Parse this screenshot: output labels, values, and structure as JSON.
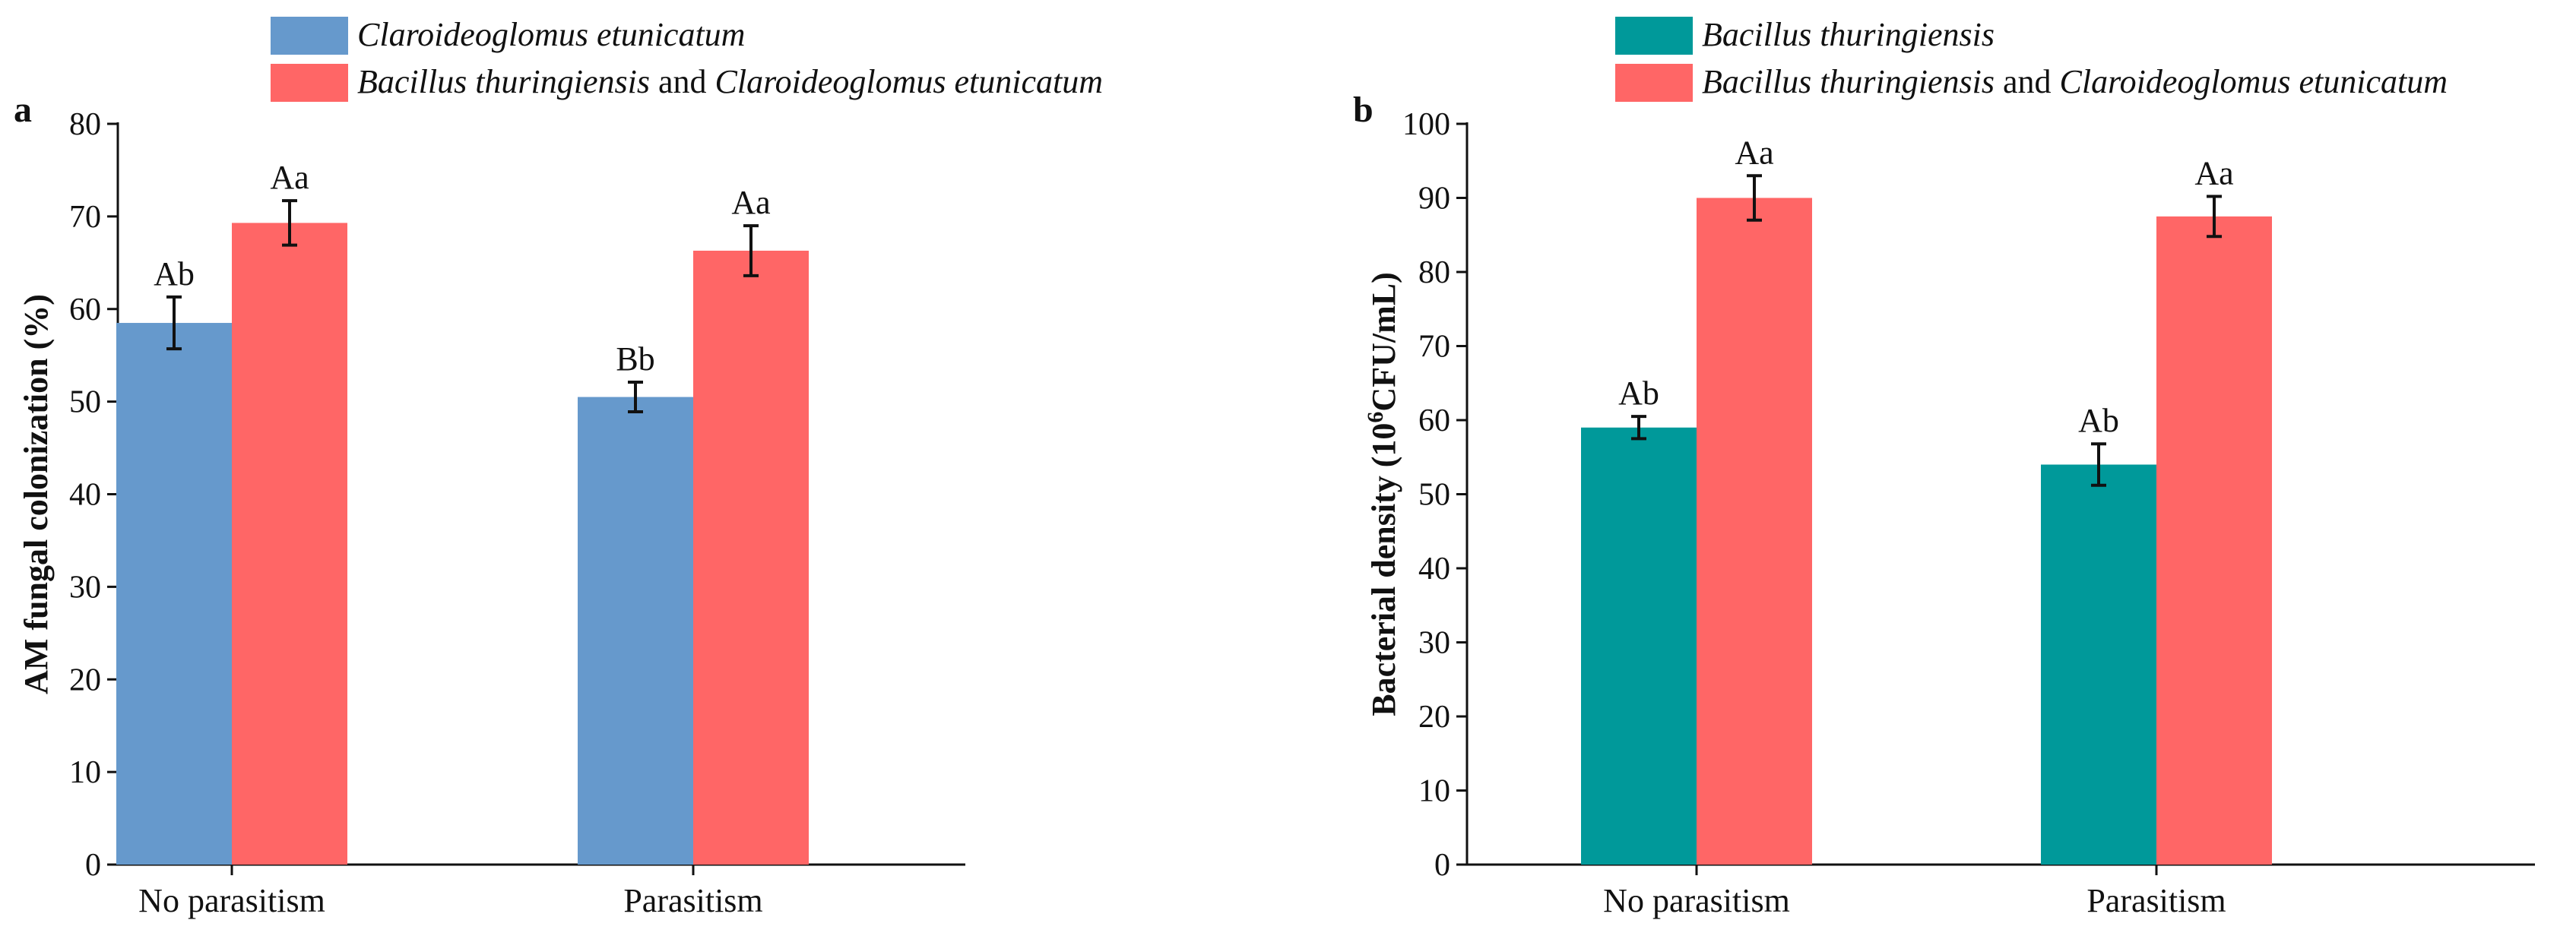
{
  "chart_data": [
    {
      "panel": "a",
      "type": "bar",
      "ylabel": "AM fungal colonization (%)",
      "ylim": [
        0,
        80
      ],
      "yticks": [
        0,
        10,
        20,
        30,
        40,
        50,
        60,
        70,
        80
      ],
      "categories": [
        "No parasitism",
        "Parasitism"
      ],
      "legend_position": "top",
      "series": [
        {
          "name_parts": [
            {
              "text": "Claroideoglomus etunicatum",
              "italic": true
            }
          ],
          "color": "#6699cc",
          "values": [
            58.5,
            50.5
          ],
          "errors": [
            2.8,
            1.6
          ],
          "labels": [
            "Ab",
            "Bb"
          ]
        },
        {
          "name_parts": [
            {
              "text": "Bacillus thuringiensis",
              "italic": true
            },
            {
              "text": " and ",
              "italic": false
            },
            {
              "text": "Claroideoglomus etunicatum",
              "italic": true
            }
          ],
          "color": "#ff6666",
          "values": [
            69.3,
            66.3
          ],
          "errors": [
            2.4,
            2.7
          ],
          "labels": [
            "Aa",
            "Aa"
          ]
        }
      ]
    },
    {
      "panel": "b",
      "type": "bar",
      "ylabel_parts": [
        {
          "text": "Bacterial density (10",
          "sup": false
        },
        {
          "text": "6",
          "sup": true
        },
        {
          "text": "CFU/mL)",
          "sup": false
        }
      ],
      "ylim": [
        0,
        100
      ],
      "yticks": [
        0,
        10,
        20,
        30,
        40,
        50,
        60,
        70,
        80,
        90,
        100
      ],
      "categories": [
        "No parasitism",
        "Parasitism"
      ],
      "legend_position": "top",
      "series": [
        {
          "name_parts": [
            {
              "text": "Bacillus thuringiensis",
              "italic": true
            }
          ],
          "color": "#00999a",
          "values": [
            59.0,
            54.0
          ],
          "errors": [
            1.5,
            2.8
          ],
          "labels": [
            "Ab",
            "Ab"
          ]
        },
        {
          "name_parts": [
            {
              "text": "Bacillus thuringiensis",
              "italic": true
            },
            {
              "text": " and ",
              "italic": false
            },
            {
              "text": "Claroideoglomus etunicatum",
              "italic": true
            }
          ],
          "color": "#ff6666",
          "values": [
            90.0,
            87.5
          ],
          "errors": [
            3.0,
            2.7
          ],
          "labels": [
            "Aa",
            "Aa"
          ]
        }
      ]
    }
  ]
}
